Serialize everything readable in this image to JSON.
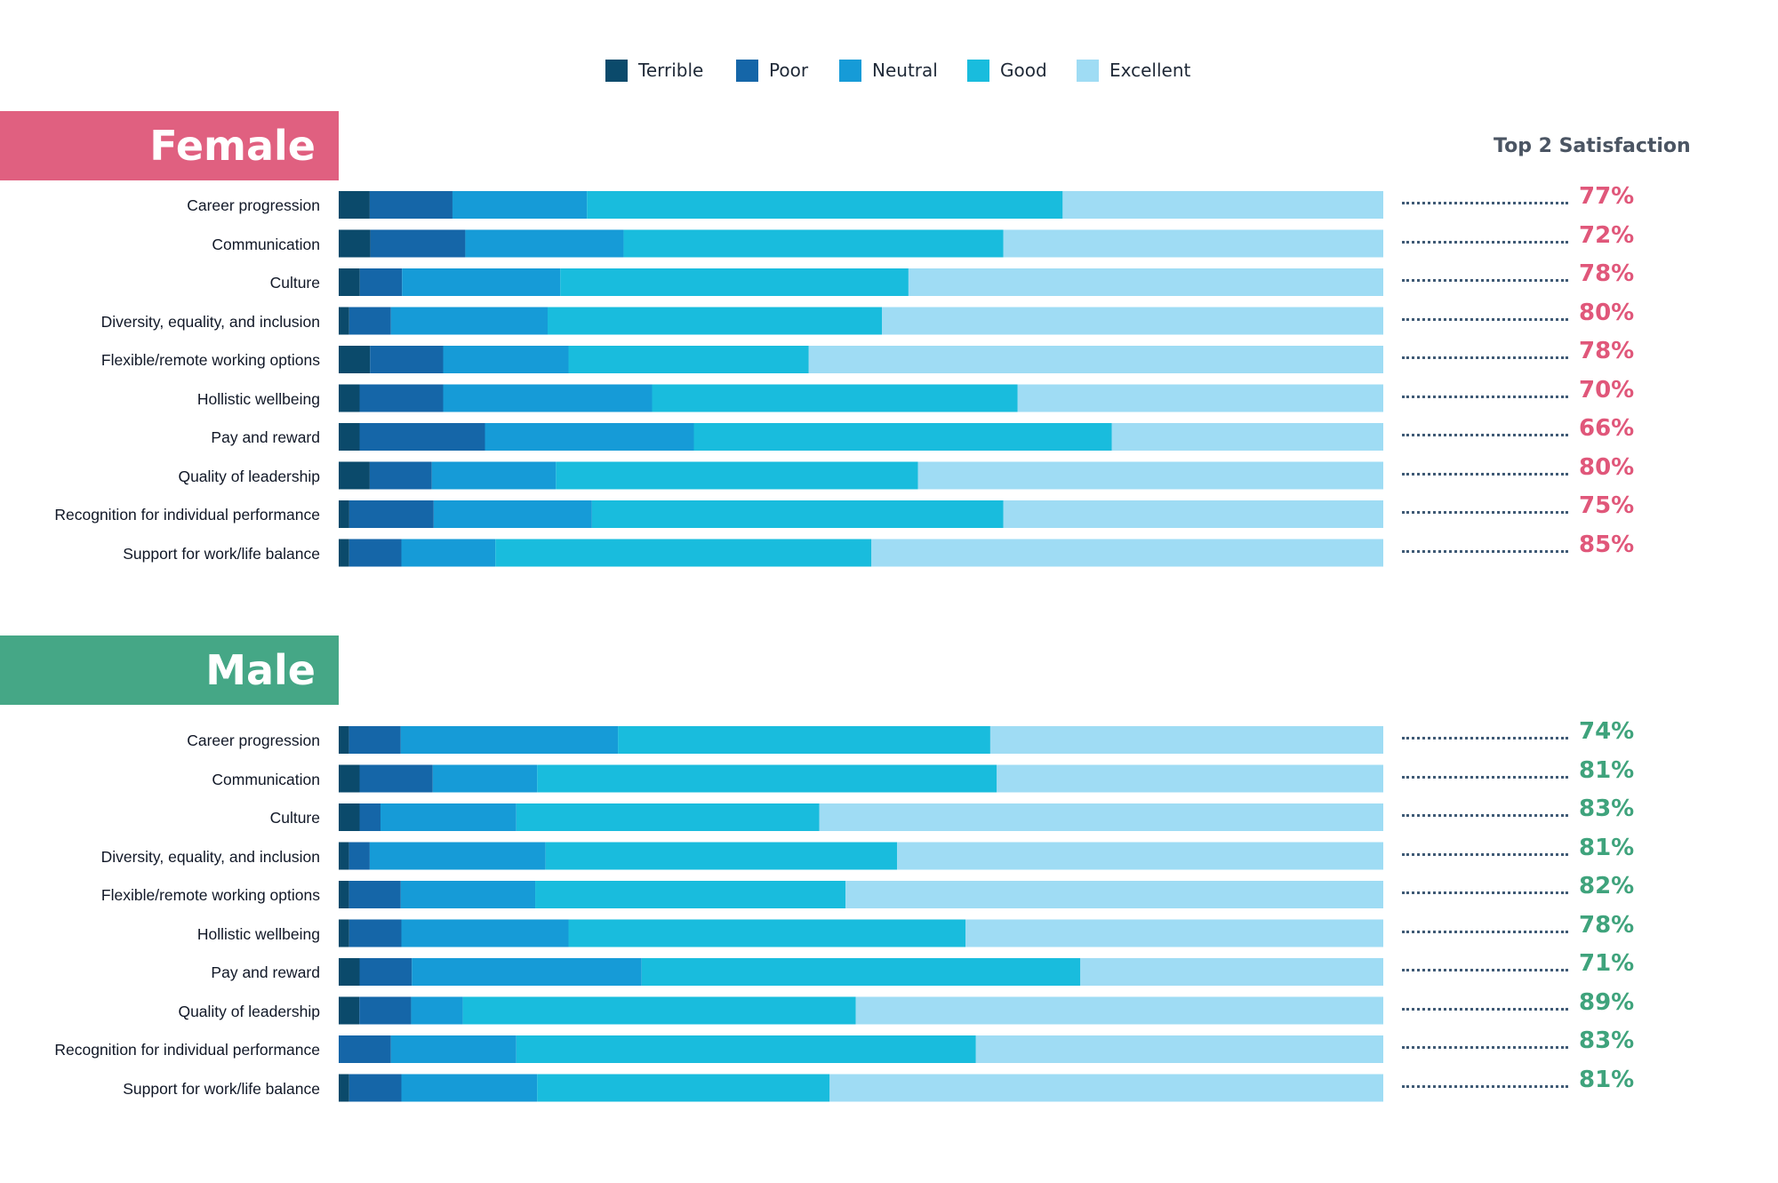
{
  "legend": [
    {
      "label": "Terrible",
      "color": "#0b4a6b"
    },
    {
      "label": "Poor",
      "color": "#1566a8"
    },
    {
      "label": "Neutral",
      "color": "#169bd7"
    },
    {
      "label": "Good",
      "color": "#19bcdd"
    },
    {
      "label": "Excellent",
      "color": "#9fdcf4"
    }
  ],
  "top2_header": "Top 2 Satisfaction",
  "chart_data": [
    {
      "type": "bar",
      "orientation": "horizontal",
      "stacked": true,
      "group": "Female",
      "banner_color": "#e06080",
      "pct_color": "#e0577a",
      "categories": [
        "Career progression",
        "Communication",
        "Culture",
        "Diversity, equality, and inclusion",
        "Flexible/remote working options",
        "Hollistic wellbeing",
        "Pay and reward",
        "Quality of leadership",
        "Recognition for individual performance",
        "Support for work/life balance"
      ],
      "series": [
        {
          "name": "Terrible",
          "values": [
            3,
            3,
            2,
            1,
            3,
            2,
            2,
            3,
            1,
            1
          ]
        },
        {
          "name": "Poor",
          "values": [
            8,
            9,
            4,
            4,
            7,
            8,
            12,
            6,
            8,
            5
          ]
        },
        {
          "name": "Neutral",
          "values": [
            13,
            15,
            15,
            15,
            12,
            20,
            20,
            12,
            15,
            9
          ]
        },
        {
          "name": "Good",
          "values": [
            46,
            36,
            33,
            32,
            23,
            35,
            40,
            35,
            39,
            36
          ]
        },
        {
          "name": "Excellent",
          "values": [
            31,
            36,
            45,
            48,
            55,
            35,
            26,
            45,
            36,
            49
          ]
        }
      ],
      "top2_satisfaction": [
        "77%",
        "72%",
        "78%",
        "80%",
        "78%",
        "70%",
        "66%",
        "80%",
        "75%",
        "85%"
      ]
    },
    {
      "type": "bar",
      "orientation": "horizontal",
      "stacked": true,
      "group": "Male",
      "banner_color": "#45a786",
      "pct_color": "#3fa37c",
      "categories": [
        "Career progression",
        "Communication",
        "Culture",
        "Diversity, equality, and inclusion",
        "Flexible/remote working options",
        "Hollistic wellbeing",
        "Pay and reward",
        "Quality of leadership",
        "Recognition for individual performance",
        "Support for work/life balance"
      ],
      "series": [
        {
          "name": "Terrible",
          "values": [
            1,
            2,
            2,
            1,
            1,
            1,
            2,
            2,
            0,
            1
          ]
        },
        {
          "name": "Poor",
          "values": [
            5,
            7,
            2,
            2,
            5,
            5,
            5,
            5,
            5,
            5
          ]
        },
        {
          "name": "Neutral",
          "values": [
            21,
            10,
            13,
            17,
            13,
            16,
            22,
            5,
            12,
            13
          ]
        },
        {
          "name": "Good",
          "values": [
            36,
            44,
            29,
            34,
            30,
            38,
            42,
            38,
            44,
            28
          ]
        },
        {
          "name": "Excellent",
          "values": [
            38,
            37,
            54,
            47,
            52,
            40,
            29,
            51,
            39,
            53
          ]
        }
      ],
      "top2_satisfaction": [
        "74%",
        "81%",
        "83%",
        "81%",
        "82%",
        "78%",
        "71%",
        "89%",
        "83%",
        "81%"
      ]
    }
  ]
}
